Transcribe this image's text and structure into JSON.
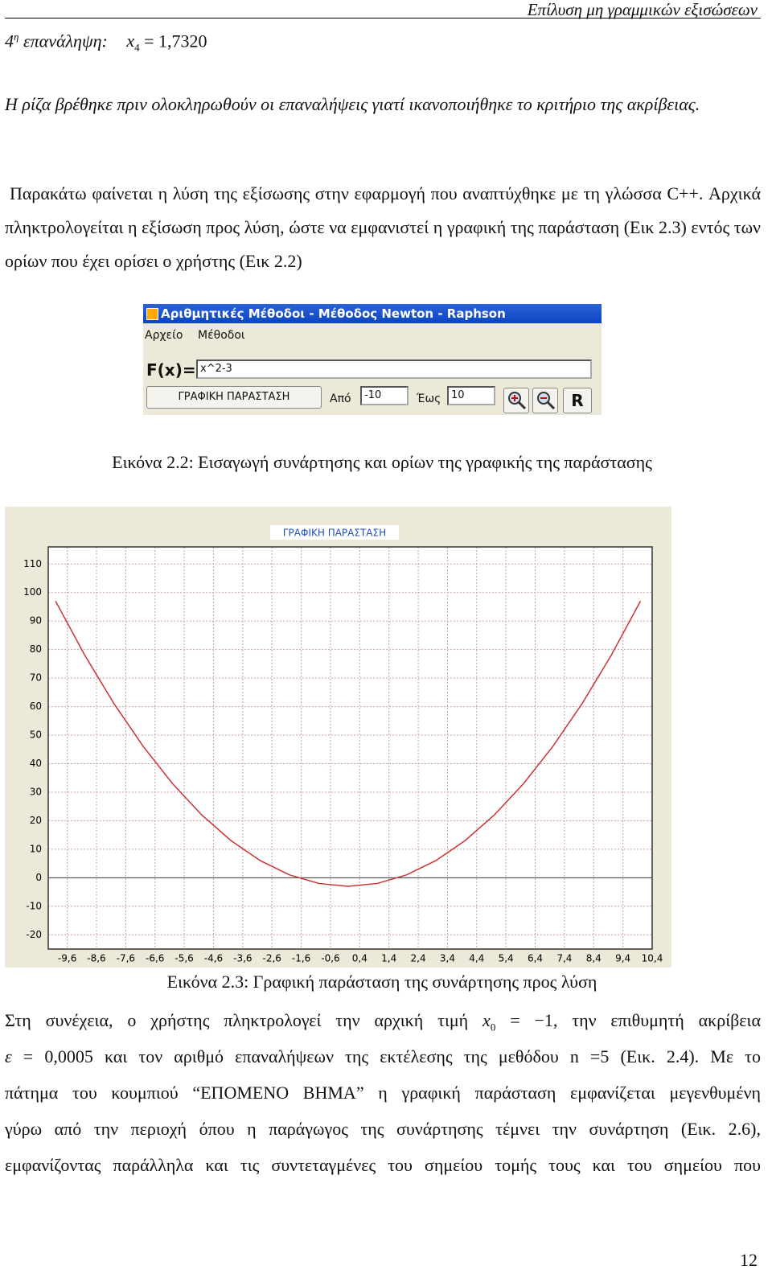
{
  "header": {
    "title": "Επίλυση μη γραμμικών εξισώσεων"
  },
  "iteration": {
    "ordinal": "4",
    "ordinal_sup": "η",
    "label": "επανάληψη:",
    "var": "x",
    "sub": "4",
    "equation": "= 1,7320"
  },
  "paragraphs": [
    "Η ρίζα βρέθηκε πριν ολοκληρωθούν οι επαναλήψεις γιατί ικανοποιήθηκε το κριτήριο της ακρίβειας.",
    "Παρακάτω φαίνεται η λύση της εξίσωσης στην εφαρμογή που αναπτύχθηκε με τη γλώσσα C++. Αρχικά πληκτρολογείται η εξίσωση προς λύση, ώστε να εμφανιστεί η γραφική της παράσταση (Εικ 2.3) εντός των ορίων που έχει ορίσει ο χρήστης (Εικ 2.2)"
  ],
  "figure_1": {
    "window_title": "Αριθμητικές Μέθοδοι - Μέθοδος Newton - Raphson",
    "menu": [
      "Αρχείο",
      "Μέθοδοι"
    ],
    "fx_label": "F(x)=",
    "fx_value": "x^2-3",
    "plot_button": "ΓΡΑΦΙΚΗ ΠΑΡΑΣΤΑΣΗ",
    "from_label": "Από",
    "from_value": "-10",
    "to_label": "Έως",
    "to_value": "10",
    "reset_button": "R",
    "caption": "Εικόνα 2.2: Εισαγωγή συνάρτησης και ορίων της γραφικής της παράστασης"
  },
  "chart_data": {
    "type": "line",
    "title": "ΓΡΑΦΙΚΗ ΠΑΡΑΣΤΑΣΗ",
    "x": [
      -10,
      -9,
      -8,
      -7,
      -6,
      -5,
      -4,
      -3,
      -2,
      -1,
      0,
      1,
      2,
      3,
      4,
      5,
      6,
      7,
      8,
      9,
      10
    ],
    "series": [
      {
        "color": "#cc3333",
        "values": [
          97,
          78,
          61,
          46,
          33,
          22,
          13,
          6,
          1,
          -2,
          -3,
          -2,
          1,
          6,
          13,
          22,
          33,
          46,
          61,
          78,
          97
        ]
      }
    ],
    "xlim": [
      -10.25,
      10.4
    ],
    "ylim": [
      -25,
      116
    ],
    "xticks": [
      {
        "value": -9.6,
        "label": "-9,6"
      },
      {
        "value": -8.6,
        "label": "-8,6"
      },
      {
        "value": -7.6,
        "label": "-7,6"
      },
      {
        "value": -6.6,
        "label": "-6,6"
      },
      {
        "value": -5.6,
        "label": "-5,6"
      },
      {
        "value": -4.6,
        "label": "-4,6"
      },
      {
        "value": -3.6,
        "label": "-3,6"
      },
      {
        "value": -2.6,
        "label": "-2,6"
      },
      {
        "value": -1.6,
        "label": "-1,6"
      },
      {
        "value": -0.6,
        "label": "-0,6"
      },
      {
        "value": 0.4,
        "label": "0,4"
      },
      {
        "value": 1.4,
        "label": "1,4"
      },
      {
        "value": 2.4,
        "label": "2,4"
      },
      {
        "value": 3.4,
        "label": "3,4"
      },
      {
        "value": 4.4,
        "label": "4,4"
      },
      {
        "value": 5.4,
        "label": "5,4"
      },
      {
        "value": 6.4,
        "label": "6,4"
      },
      {
        "value": 7.4,
        "label": "7,4"
      },
      {
        "value": 8.4,
        "label": "8,4"
      },
      {
        "value": 9.4,
        "label": "9,4"
      },
      {
        "value": 10.4,
        "label": "10,4"
      }
    ],
    "yticks": [
      -20,
      -10,
      0,
      10,
      20,
      30,
      40,
      50,
      60,
      70,
      80,
      90,
      100,
      110
    ],
    "grid": true
  },
  "figure_2": {
    "caption": "Εικόνα 2.3: Γραφική παράσταση της συνάρτησης προς λύση"
  },
  "paragraph_3": {
    "line_1": {
      "before": "Στη συνέχεια, ο χρήστης πληκτρολογεί την αρχική τιμή",
      "var": "x",
      "sub": "0",
      "equation": "= −1",
      "after": ", την επιθυμητή ακρίβεια"
    },
    "line_2": {
      "var": "ε",
      "equation": "= 0,0005",
      "after": "και τον αριθμό επαναλήψεων της εκτέλεσης της μεθόδου n =5 (Εικ. 2.4). Με το"
    },
    "lines": [
      "πάτημα του κουμπιού “ΕΠΟΜΕΝΟ ΒΗΜΑ” η γραφική παράσταση εμφανίζεται μεγενθυμένη",
      "γύρω από την περιοχή όπου η παράγωγος της συνάρτησης τέμνει την συνάρτηση (Εικ. 2.6),",
      "εμφανίζοντας παράλληλα και τις συντεταγμένες του σημείου τομής τους και του σημείου που"
    ]
  },
  "page_number": "12"
}
